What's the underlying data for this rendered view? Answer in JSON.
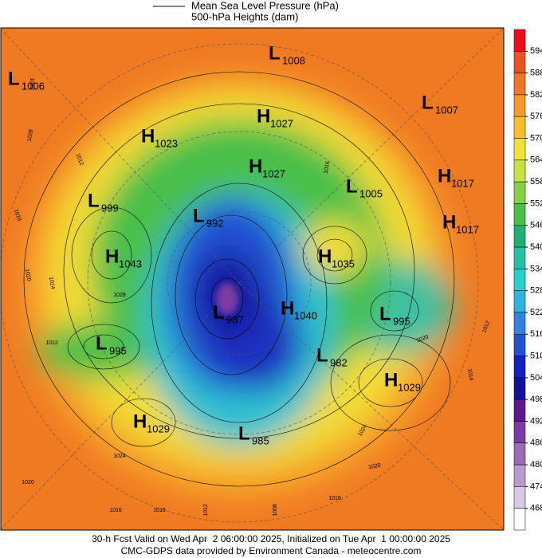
{
  "legend": [
    "Mean Sea Level Pressure (hPa)",
    "500-hPa Heights (dam)"
  ],
  "colorbar": {
    "levels": [
      594,
      588,
      582,
      576,
      570,
      564,
      558,
      552,
      546,
      540,
      534,
      528,
      522,
      516,
      510,
      504,
      498,
      492,
      486,
      480,
      474,
      468
    ],
    "colors": [
      "#f20c1a",
      "#ea5320",
      "#f07624",
      "#f59a28",
      "#f8be2c",
      "#f2e233",
      "#c8e23e",
      "#84d23e",
      "#46c244",
      "#22b070",
      "#22c2a4",
      "#24d0d2",
      "#2eb2e4",
      "#2e84e2",
      "#2252d2",
      "#1222c0",
      "#12129e",
      "#5a1a8e",
      "#7a3ca2",
      "#9a6cb8",
      "#b89ace",
      "#d8cae6",
      "#ffffff"
    ]
  },
  "centers": [
    {
      "letter": "L",
      "value": 1006
    },
    {
      "letter": "L",
      "value": 1008
    },
    {
      "letter": "H",
      "value": 1027
    },
    {
      "letter": "L",
      "value": 1007
    },
    {
      "letter": "H",
      "value": 1023
    },
    {
      "letter": "H",
      "value": 1027
    },
    {
      "letter": "L",
      "value": 1005
    },
    {
      "letter": "H",
      "value": 1017
    },
    {
      "letter": "L",
      "value": 999
    },
    {
      "letter": "H",
      "value": 1017
    },
    {
      "letter": "L",
      "value": 992
    },
    {
      "letter": "H",
      "value": 1043
    },
    {
      "letter": "H",
      "value": 1035
    },
    {
      "letter": "L",
      "value": 987
    },
    {
      "letter": "H",
      "value": 1040
    },
    {
      "letter": "L",
      "value": 995
    },
    {
      "letter": "L",
      "value": 995
    },
    {
      "letter": "L",
      "value": 982
    },
    {
      "letter": "H",
      "value": 1029
    },
    {
      "letter": "H",
      "value": 1029
    },
    {
      "letter": "L",
      "value": 985
    }
  ],
  "isobar_labels": [
    1012,
    1028,
    1012,
    1016,
    1020,
    1024,
    1028,
    1012,
    1020,
    1024,
    1016,
    1020,
    1024,
    1020,
    1016,
    1016,
    1012,
    1008,
    1016,
    1012,
    1016
  ],
  "footer": [
    "30-h Fcst Valid on Wed Apr  2 06:00:00 2025, Initialized on Tue Apr  1 00:00:00 2025",
    "CMC-GDPS data provided by Environment Canada - meteocentre.com"
  ]
}
